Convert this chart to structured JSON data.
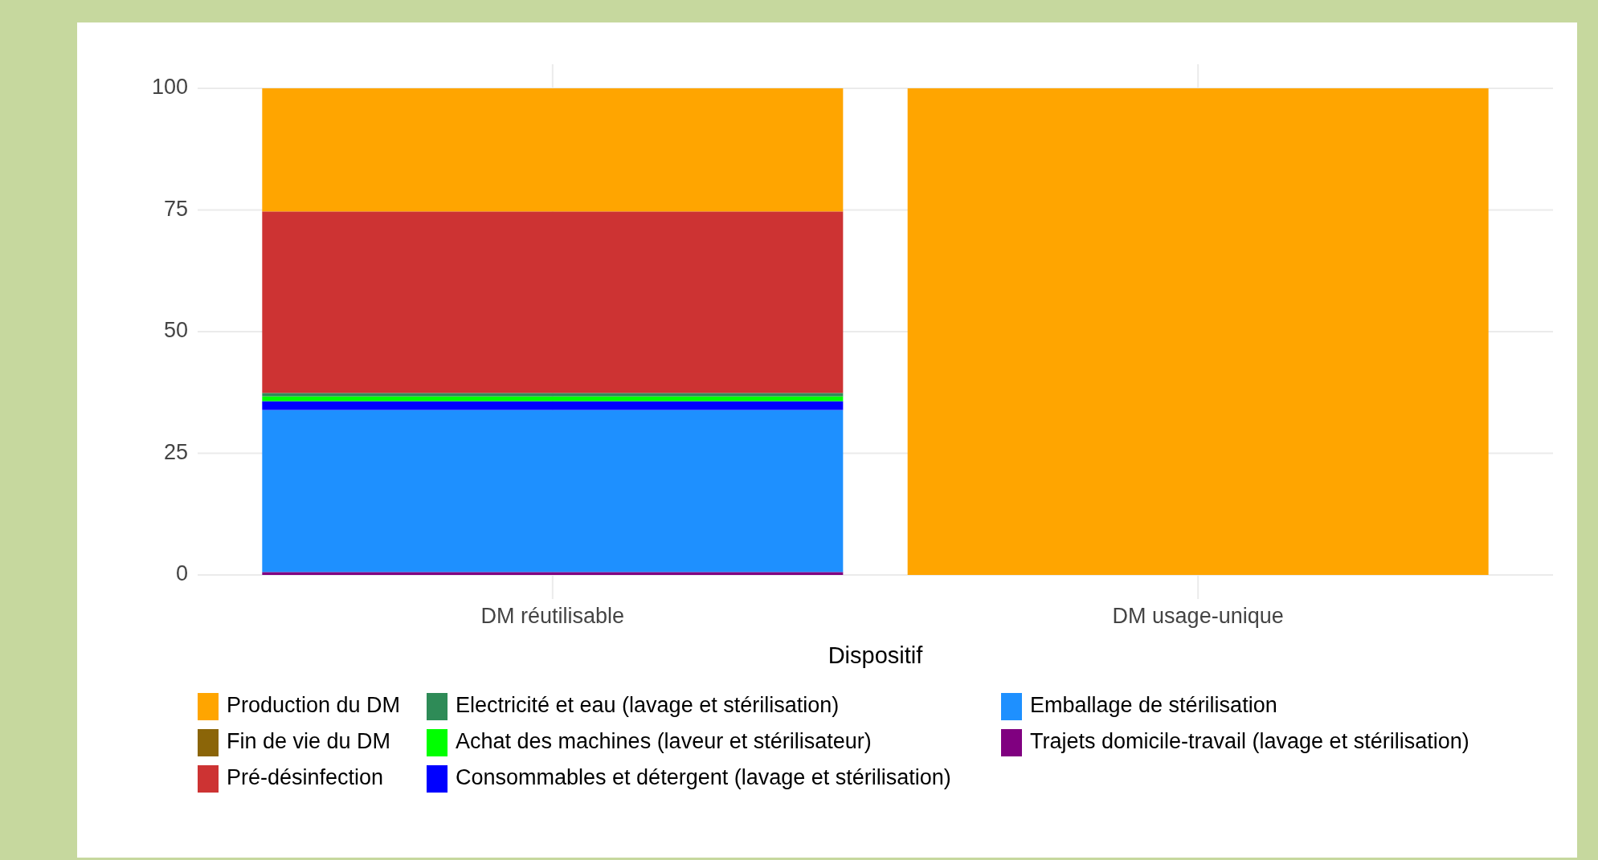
{
  "chart_data": {
    "type": "bar",
    "xlabel": "Dispositif",
    "categories": [
      "DM réutilisable",
      "DM usage-unique"
    ],
    "stacked": true,
    "ylim": [
      0,
      100
    ],
    "yticks": [
      0,
      25,
      50,
      75,
      100
    ],
    "grid": true,
    "legend": "bottom",
    "series": [
      {
        "name": "Trajets domicile-travail (lavage et stérilisation)",
        "color": "#800080",
        "values": [
          0.6,
          0
        ]
      },
      {
        "name": "Emballage de stérilisation",
        "color": "#1e90ff",
        "values": [
          33.3,
          0
        ]
      },
      {
        "name": "Consommables et détergent (lavage et stérilisation)",
        "color": "#0000ff",
        "values": [
          1.8,
          0
        ]
      },
      {
        "name": "Achat des machines (laveur et stérilisateur)",
        "color": "#00ff00",
        "values": [
          1.0,
          0
        ]
      },
      {
        "name": "Electricité et eau (lavage et stérilisation)",
        "color": "#2e8b57",
        "values": [
          0.7,
          0
        ]
      },
      {
        "name": "Pré-désinfection",
        "color": "#cd3333",
        "values": [
          37.3,
          0
        ]
      },
      {
        "name": "Fin de vie du DM",
        "color": "#8b6508",
        "values": [
          0,
          0
        ]
      },
      {
        "name": "Production du DM",
        "color": "#ffa500",
        "values": [
          25.3,
          100
        ]
      }
    ]
  }
}
